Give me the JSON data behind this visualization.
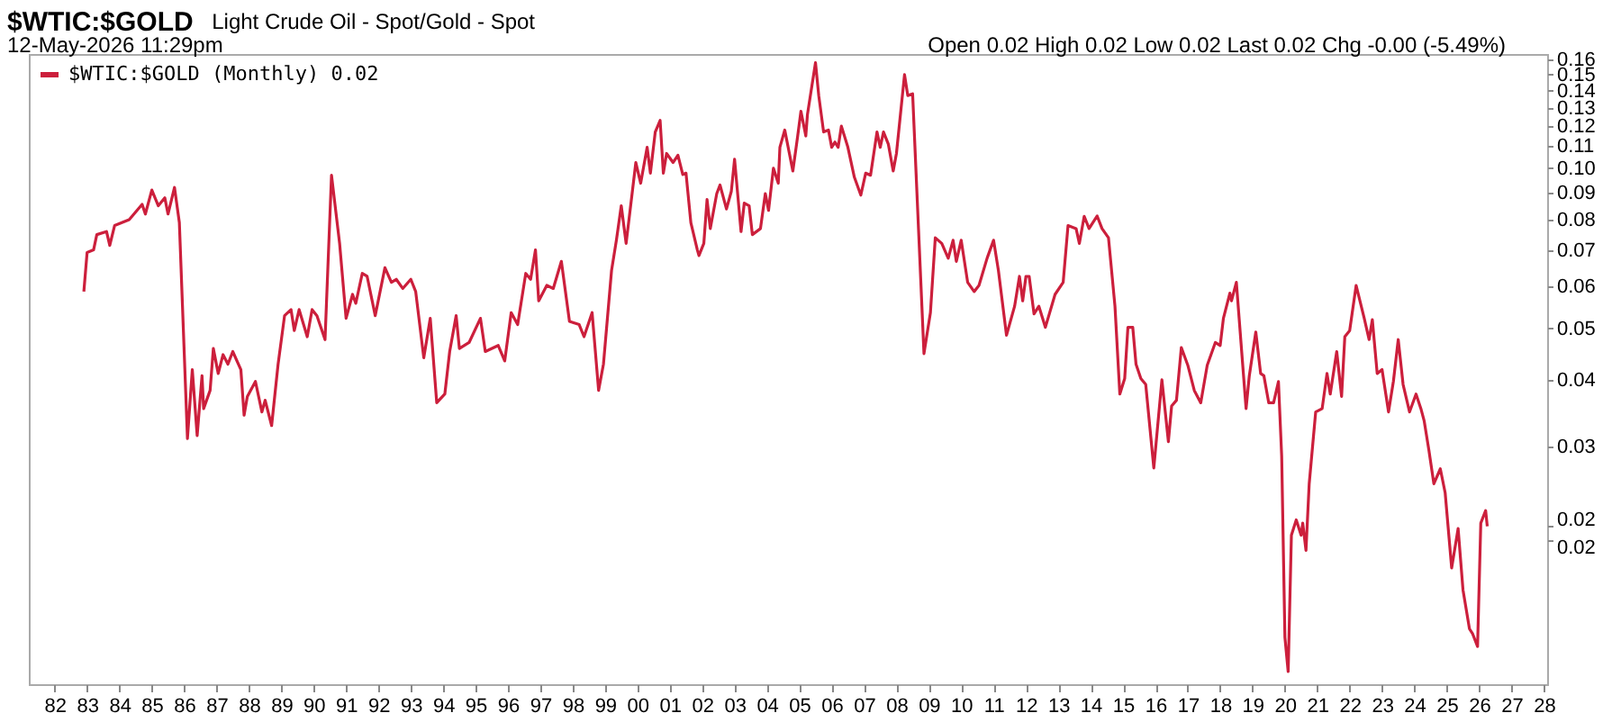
{
  "chart_data": {
    "type": "line",
    "title": "$WTIC:$GOLD",
    "subtitle": "Light Crude Oil - Spot/Gold - Spot",
    "annotations": [
      "12-May-2026 11:29pm",
      "Open 0.02  High 0.02  Low 0.02  Last 0.02  Chg -0.00 (-5.49%)"
    ],
    "x": [
      1982.9,
      1983.0,
      1983.2,
      1983.3,
      1983.6,
      1983.7,
      1983.85,
      1984.3,
      1984.7,
      1984.8,
      1985.0,
      1985.2,
      1985.4,
      1985.5,
      1985.7,
      1985.85,
      1986.1,
      1986.25,
      1986.4,
      1986.55,
      1986.6,
      1986.8,
      1986.9,
      1987.05,
      1987.2,
      1987.35,
      1987.5,
      1987.75,
      1987.85,
      1987.95,
      1988.2,
      1988.4,
      1988.5,
      1988.7,
      1988.9,
      1989.1,
      1989.3,
      1989.4,
      1989.55,
      1989.8,
      1989.95,
      1990.1,
      1990.35,
      1990.55,
      1990.8,
      1991.0,
      1991.2,
      1991.3,
      1991.5,
      1991.65,
      1991.9,
      1992.2,
      1992.4,
      1992.55,
      1992.75,
      1993.0,
      1993.15,
      1993.4,
      1993.6,
      1993.8,
      1994.05,
      1994.2,
      1994.4,
      1994.5,
      1994.8,
      1995.15,
      1995.3,
      1995.7,
      1995.9,
      1996.1,
      1996.3,
      1996.55,
      1996.7,
      1996.85,
      1996.95,
      1997.2,
      1997.4,
      1997.65,
      1997.9,
      1998.2,
      1998.35,
      1998.6,
      1998.8,
      1998.95,
      1999.2,
      1999.35,
      1999.5,
      1999.65,
      1999.95,
      2000.1,
      2000.3,
      2000.4,
      2000.55,
      2000.7,
      2000.8,
      2000.9,
      2001.1,
      2001.25,
      2001.4,
      2001.5,
      2001.65,
      2001.85,
      2001.9,
      2002.05,
      2002.15,
      2002.25,
      2002.45,
      2002.55,
      2002.75,
      2002.9,
      2003.0,
      2003.2,
      2003.3,
      2003.45,
      2003.55,
      2003.8,
      2003.95,
      2004.05,
      2004.2,
      2004.35,
      2004.4,
      2004.55,
      2004.8,
      2004.95,
      2005.05,
      2005.2,
      2005.25,
      2005.5,
      2005.6,
      2005.75,
      2005.9,
      2006.0,
      2006.1,
      2006.2,
      2006.3,
      2006.5,
      2006.7,
      2006.9,
      2007.05,
      2007.2,
      2007.4,
      2007.5,
      2007.6,
      2007.75,
      2007.9,
      2008.0,
      2008.25,
      2008.35,
      2008.5,
      2008.85,
      2009.05,
      2009.2,
      2009.4,
      2009.6,
      2009.75,
      2009.85,
      2010.0,
      2010.2,
      2010.4,
      2010.55,
      2010.8,
      2011.0,
      2011.15,
      2011.4,
      2011.65,
      2011.8,
      2011.9,
      2012.0,
      2012.1,
      2012.25,
      2012.4,
      2012.6,
      2012.9,
      2013.15,
      2013.3,
      2013.55,
      2013.65,
      2013.8,
      2013.95,
      2014.2,
      2014.35,
      2014.55,
      2014.75,
      2014.9,
      2015.05,
      2015.15,
      2015.3,
      2015.4,
      2015.55,
      2015.7,
      2015.95,
      2016.2,
      2016.4,
      2016.5,
      2016.65,
      2016.8,
      2017.0,
      2017.2,
      2017.4,
      2017.6,
      2017.85,
      2018.0,
      2018.1,
      2018.3,
      2018.35,
      2018.5,
      2018.8,
      2018.9,
      2019.1,
      2019.25,
      2019.35,
      2019.5,
      2019.65,
      2019.8,
      2019.9,
      2020.0,
      2020.1,
      2020.2,
      2020.35,
      2020.5,
      2020.55,
      2020.65,
      2020.75,
      2020.95,
      2021.15,
      2021.3,
      2021.4,
      2021.6,
      2021.75,
      2021.85,
      2022.0,
      2022.2,
      2022.45,
      2022.6,
      2022.7,
      2022.85,
      2023.0,
      2023.2,
      2023.35,
      2023.5,
      2023.65,
      2023.85,
      2024.05,
      2024.2,
      2024.3,
      2024.45,
      2024.6,
      2024.8,
      2024.95,
      2025.15,
      2025.35,
      2025.5,
      2025.7,
      2025.8,
      2025.95,
      2026.05,
      2026.2,
      2026.25
    ],
    "series": [
      {
        "name": "$WTIC:$GOLD (Monthly) 0.02",
        "color": "#cc1f3c",
        "values": [
          0.0586,
          0.0694,
          0.0702,
          0.075,
          0.076,
          0.0716,
          0.078,
          0.08,
          0.0855,
          0.082,
          0.091,
          0.085,
          0.088,
          0.082,
          0.092,
          0.079,
          0.031,
          0.0418,
          0.0314,
          0.0407,
          0.0353,
          0.0382,
          0.0458,
          0.0411,
          0.0446,
          0.0428,
          0.0452,
          0.0418,
          0.0343,
          0.0372,
          0.0397,
          0.0348,
          0.0366,
          0.0328,
          0.0428,
          0.0528,
          0.0542,
          0.0495,
          0.0542,
          0.0482,
          0.0542,
          0.0528,
          0.0476,
          0.097,
          0.0722,
          0.0522,
          0.0579,
          0.0557,
          0.0634,
          0.0626,
          0.0528,
          0.065,
          0.061,
          0.0618,
          0.0594,
          0.0618,
          0.0586,
          0.044,
          0.0522,
          0.0362,
          0.0376,
          0.0452,
          0.0528,
          0.0458,
          0.047,
          0.0522,
          0.0452,
          0.0464,
          0.0434,
          0.0535,
          0.0508,
          0.0634,
          0.0618,
          0.0702,
          0.0563,
          0.0602,
          0.0594,
          0.0668,
          0.0515,
          0.0508,
          0.0482,
          0.0535,
          0.0382,
          0.0428,
          0.0642,
          0.0732,
          0.085,
          0.0722,
          0.1025,
          0.0937,
          0.1095,
          0.0979,
          0.117,
          0.123,
          0.0979,
          0.1066,
          0.1025,
          0.1058,
          0.0973,
          0.0979,
          0.079,
          0.0702,
          0.0685,
          0.0722,
          0.0873,
          0.077,
          0.0896,
          0.093,
          0.0838,
          0.0905,
          0.104,
          0.076,
          0.086,
          0.085,
          0.075,
          0.077,
          0.0896,
          0.0833,
          0.1,
          0.0937,
          0.1095,
          0.118,
          0.0988,
          0.115,
          0.128,
          0.115,
          0.126,
          0.158,
          0.137,
          0.117,
          0.118,
          0.1095,
          0.112,
          0.1095,
          0.12,
          0.1095,
          0.0962,
          0.089,
          0.0979,
          0.097,
          0.117,
          0.1095,
          0.117,
          0.111,
          0.0988,
          0.1066,
          0.15,
          0.137,
          0.138,
          0.0448,
          0.0535,
          0.074,
          0.0722,
          0.0677,
          0.0732,
          0.0668,
          0.0732,
          0.061,
          0.0586,
          0.0602,
          0.0677,
          0.0732,
          0.0642,
          0.0485,
          0.055,
          0.0626,
          0.0563,
          0.0626,
          0.0626,
          0.0532,
          0.055,
          0.0502,
          0.0579,
          0.061,
          0.078,
          0.077,
          0.0722,
          0.0812,
          0.077,
          0.0813,
          0.077,
          0.074,
          0.055,
          0.0376,
          0.0402,
          0.0502,
          0.0502,
          0.0428,
          0.0402,
          0.0392,
          0.0273,
          0.04,
          0.0306,
          0.0357,
          0.0366,
          0.046,
          0.0426,
          0.0382,
          0.0362,
          0.0426,
          0.047,
          0.0464,
          0.0522,
          0.0582,
          0.0563,
          0.061,
          0.0353,
          0.0407,
          0.0492,
          0.0411,
          0.0407,
          0.0362,
          0.0362,
          0.0397,
          0.0287,
          0.0131,
          0.0113,
          0.0204,
          0.0218,
          0.0204,
          0.0215,
          0.0191,
          0.0255,
          0.0348,
          0.0353,
          0.0411,
          0.0376,
          0.0452,
          0.0372,
          0.0482,
          0.0495,
          0.0602,
          0.0522,
          0.0476,
          0.0519,
          0.0411,
          0.0418,
          0.0348,
          0.0397,
          0.0476,
          0.0392,
          0.0348,
          0.0376,
          0.0353,
          0.0335,
          0.0294,
          0.0255,
          0.0272,
          0.0245,
          0.0177,
          0.021,
          0.0161,
          0.0136,
          0.0133,
          0.0126,
          0.0215,
          0.0227,
          0.0212
        ]
      }
    ],
    "xlim": [
      1981.2,
      2028.1
    ],
    "xticks": [
      {
        "value": 1982,
        "label": "82"
      },
      {
        "value": 1983,
        "label": "83"
      },
      {
        "value": 1984,
        "label": "84"
      },
      {
        "value": 1985,
        "label": "85"
      },
      {
        "value": 1986,
        "label": "86"
      },
      {
        "value": 1987,
        "label": "87"
      },
      {
        "value": 1988,
        "label": "88"
      },
      {
        "value": 1989,
        "label": "89"
      },
      {
        "value": 1990,
        "label": "90"
      },
      {
        "value": 1991,
        "label": "91"
      },
      {
        "value": 1992,
        "label": "92"
      },
      {
        "value": 1993,
        "label": "93"
      },
      {
        "value": 1994,
        "label": "94"
      },
      {
        "value": 1995,
        "label": "95"
      },
      {
        "value": 1996,
        "label": "96"
      },
      {
        "value": 1997,
        "label": "97"
      },
      {
        "value": 1998,
        "label": "98"
      },
      {
        "value": 1999,
        "label": "99"
      },
      {
        "value": 2000,
        "label": "00"
      },
      {
        "value": 2001,
        "label": "01"
      },
      {
        "value": 2002,
        "label": "02"
      },
      {
        "value": 2003,
        "label": "03"
      },
      {
        "value": 2004,
        "label": "04"
      },
      {
        "value": 2005,
        "label": "05"
      },
      {
        "value": 2006,
        "label": "06"
      },
      {
        "value": 2007,
        "label": "07"
      },
      {
        "value": 2008,
        "label": "08"
      },
      {
        "value": 2009,
        "label": "09"
      },
      {
        "value": 2010,
        "label": "10"
      },
      {
        "value": 2011,
        "label": "11"
      },
      {
        "value": 2012,
        "label": "12"
      },
      {
        "value": 2013,
        "label": "13"
      },
      {
        "value": 2014,
        "label": "14"
      },
      {
        "value": 2015,
        "label": "15"
      },
      {
        "value": 2016,
        "label": "16"
      },
      {
        "value": 2017,
        "label": "17"
      },
      {
        "value": 2018,
        "label": "18"
      },
      {
        "value": 2019,
        "label": "19"
      },
      {
        "value": 2020,
        "label": "20"
      },
      {
        "value": 2021,
        "label": "21"
      },
      {
        "value": 2022,
        "label": "22"
      },
      {
        "value": 2023,
        "label": "23"
      },
      {
        "value": 2024,
        "label": "24"
      },
      {
        "value": 2025,
        "label": "25"
      },
      {
        "value": 2026,
        "label": "26"
      },
      {
        "value": 2027,
        "label": "27"
      },
      {
        "value": 2028,
        "label": "28"
      }
    ],
    "ylim": [
      0.0107,
      0.164
    ],
    "yticks": [
      0.02,
      {
        "value": 0.0212,
        "label": "0.02"
      },
      0.03,
      0.04,
      0.05,
      0.06,
      0.07,
      0.08,
      0.09,
      {
        "value": 0.1,
        "label": "0.10"
      },
      0.11,
      0.12,
      0.13,
      0.14,
      0.15,
      0.16
    ],
    "log": "y",
    "grid": false,
    "legend": "top left",
    "marker": "none",
    "line_style": "solid"
  }
}
